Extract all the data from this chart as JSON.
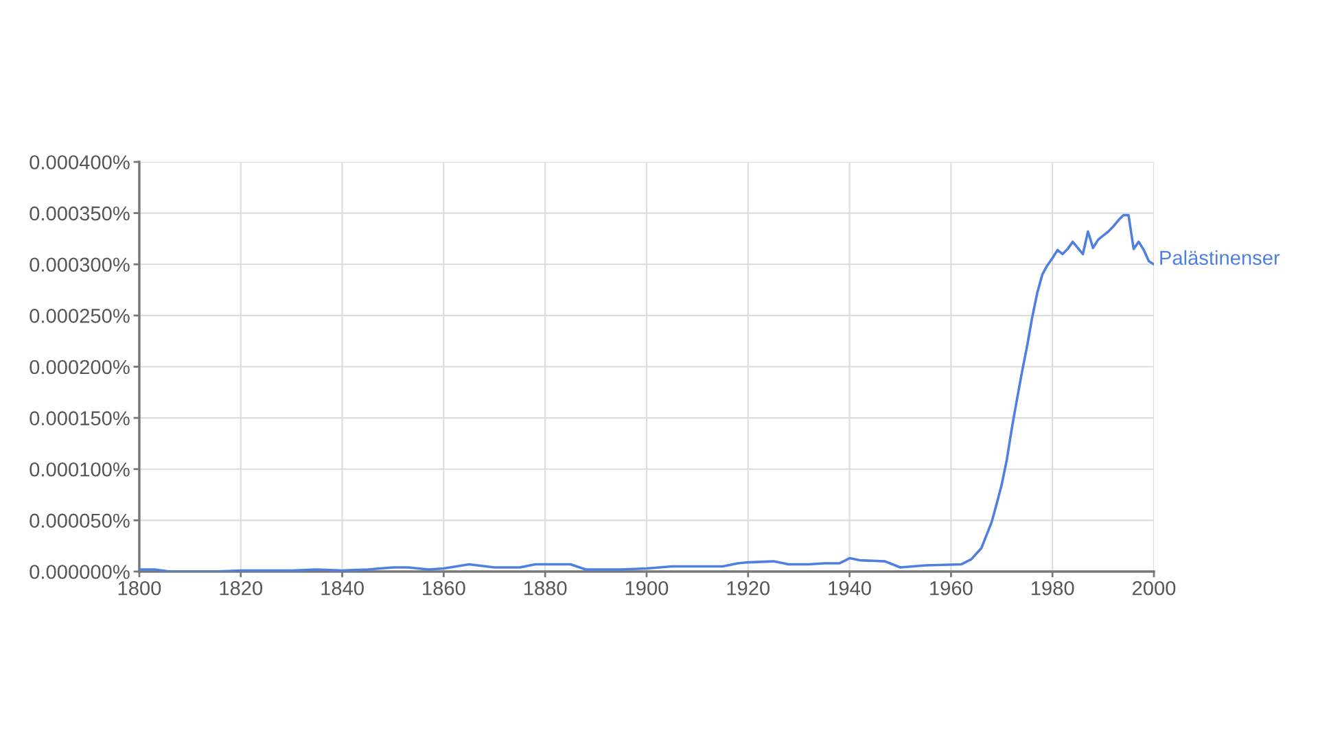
{
  "chart_data": {
    "type": "line",
    "series": [
      {
        "name": "Palästinenser",
        "color": "#4f7fe0",
        "x": [
          1800,
          1803,
          1806,
          1810,
          1815,
          1820,
          1825,
          1830,
          1835,
          1840,
          1845,
          1850,
          1853,
          1857,
          1860,
          1865,
          1870,
          1875,
          1878,
          1885,
          1888,
          1895,
          1900,
          1905,
          1910,
          1915,
          1918,
          1920,
          1925,
          1928,
          1932,
          1935,
          1938,
          1940,
          1942,
          1947,
          1950,
          1955,
          1962,
          1964,
          1966,
          1968,
          1969,
          1970,
          1971,
          1972,
          1973,
          1974,
          1975,
          1976,
          1977,
          1978,
          1979,
          1980,
          1981,
          1982,
          1983,
          1984,
          1985,
          1986,
          1987,
          1988,
          1989,
          1990,
          1991,
          1992,
          1993,
          1994,
          1995,
          1996,
          1997,
          1998,
          1999,
          2000
        ],
        "values": [
          2e-06,
          2e-06,
          0,
          0,
          0,
          1e-06,
          1e-06,
          1e-06,
          2e-06,
          1e-06,
          2e-06,
          4e-06,
          4e-06,
          2e-06,
          3e-06,
          7e-06,
          4e-06,
          4e-06,
          7e-06,
          7e-06,
          2e-06,
          2e-06,
          3e-06,
          5e-06,
          5e-06,
          5e-06,
          8e-06,
          9e-06,
          1e-05,
          7e-06,
          7e-06,
          8e-06,
          8e-06,
          1.3e-05,
          1.1e-05,
          1e-05,
          4e-06,
          6e-06,
          7e-06,
          1.2e-05,
          2.3e-05,
          4.8e-05,
          6.6e-05,
          8.5e-05,
          0.000109,
          0.00014,
          0.000168,
          0.000195,
          0.00022,
          0.000248,
          0.000272,
          0.00029,
          0.000299,
          0.000306,
          0.000314,
          0.00031,
          0.000315,
          0.000322,
          0.000316,
          0.00031,
          0.000332,
          0.000316,
          0.000324,
          0.000328,
          0.000332,
          0.000337,
          0.000343,
          0.000348,
          0.000348,
          0.000315,
          0.000322,
          0.000314,
          0.000303,
          0.0003
        ]
      }
    ],
    "xlim": [
      1800,
      2000
    ],
    "xticks": [
      1800,
      1820,
      1840,
      1860,
      1880,
      1900,
      1920,
      1940,
      1960,
      1980,
      2000
    ],
    "ylim": [
      0,
      0.0004
    ],
    "yticks": [
      {
        "value": 0,
        "label": "0.000000%"
      },
      {
        "value": 5e-05,
        "label": "0.000050%"
      },
      {
        "value": 0.0001,
        "label": "0.000100%"
      },
      {
        "value": 0.00015,
        "label": "0.000150%"
      },
      {
        "value": 0.0002,
        "label": "0.000200%"
      },
      {
        "value": 0.00025,
        "label": "0.000250%"
      },
      {
        "value": 0.0003,
        "label": "0.000300%"
      },
      {
        "value": 0.00035,
        "label": "0.000350%"
      },
      {
        "value": 0.0004,
        "label": "0.000400%"
      }
    ],
    "grid": true,
    "legend": false,
    "marker": "none",
    "line_style": "solid"
  }
}
